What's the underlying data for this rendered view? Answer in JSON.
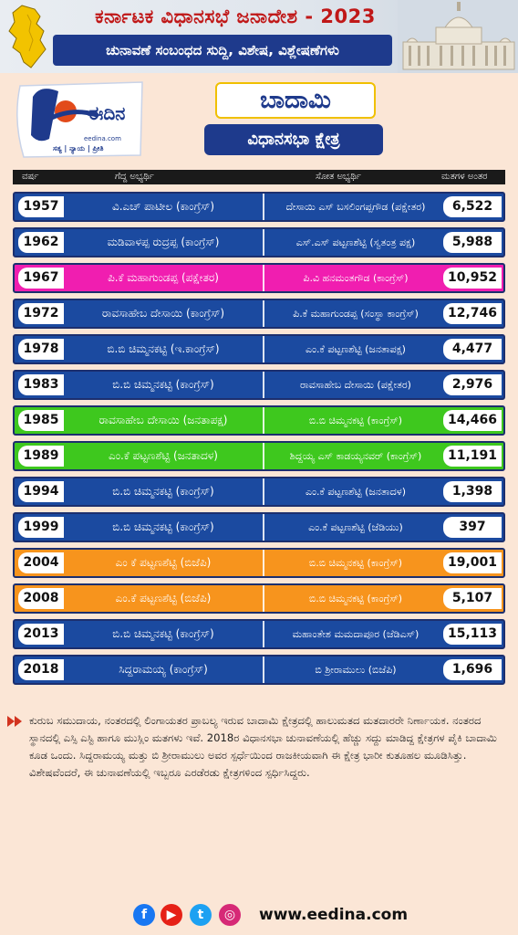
{
  "header": {
    "title": "ಕರ್ನಾಟಕ ವಿಧಾನಸಭೆ ಜನಾದೇಶ - 2023",
    "subtitle": "ಚುನಾವಣೆ ಸಂಬಂಧದ ಸುದ್ದಿ, ವಿಶೇಷ, ವಿಶ್ಲೇಷಣೆಗಳು"
  },
  "logo": {
    "name": "ಈದಿನ",
    "url": "eedina.com",
    "tagline": "ಸತ್ಯ | ನ್ಯಾಯ | ಪ್ರೀತಿ"
  },
  "constituency": {
    "name": "ಬಾದಾಮಿ",
    "type": "ವಿಧಾನಸಭಾ ಕ್ಷೇತ್ರ"
  },
  "table": {
    "headers": {
      "year": "ವರ್ಷ",
      "winner": "ಗೆದ್ದ ಅಭ್ಯರ್ಥಿ",
      "loser": "ಸೋತ ಅಭ್ಯರ್ಥಿ",
      "margin": "ಮತಗಳ ಅಂತರ"
    },
    "rows": [
      {
        "year": "1957",
        "winner": "ವಿ.ಎಚ್ ಪಾಟೀಲ (ಕಾಂಗ್ರೆಸ್)",
        "loser": "ದೇಸಾಯಿ ಎಸ್ ಬಸಲಿಂಗಪ್ಪಗೌಡ (ಪಕ್ಷೇತರ)",
        "margin": "6,522",
        "bg": "#1b4aa0",
        "fg": "#ffffff"
      },
      {
        "year": "1962",
        "winner": "ಮಡಿವಾಳಪ್ಪ ರುದ್ರಪ್ಪ (ಕಾಂಗ್ರೆಸ್)",
        "loser": "ಎಸ್.ಎಸ್ ಪಟ್ಟಣಶೆಟ್ಟಿ (ಸ್ವತಂತ್ರ ಪಕ್ಷ)",
        "margin": "5,988",
        "bg": "#1b4aa0",
        "fg": "#ffffff"
      },
      {
        "year": "1967",
        "winner": "ಪಿ.ಕೆ ಮಹಾಗುಂಡಪ್ಪ (ಪಕ್ಷೇತರ)",
        "loser": "ಪಿ.ವಿ ಹನಮಂತಗೌಡ (ಕಾಂಗ್ರೆಸ್)",
        "margin": "10,952",
        "bg": "#f01eb0",
        "fg": "#ffffff"
      },
      {
        "year": "1972",
        "winner": "ರಾವಸಾಹೇಬ ದೇಸಾಯಿ (ಕಾಂಗ್ರೆಸ್)",
        "loser": "ಪಿ.ಕೆ ಮಹಾಗುಂಡಪ್ಪ (ಸಂಸ್ಥಾ ಕಾಂಗ್ರೆಸ್)",
        "margin": "12,746",
        "bg": "#1b4aa0",
        "fg": "#ffffff"
      },
      {
        "year": "1978",
        "winner": "ಬಿ.ಬಿ ಚಿಮ್ಮನಕಟ್ಟಿ (ಇ.ಕಾಂಗ್ರೆಸ್)",
        "loser": "ಎಂ.ಕೆ ಪಟ್ಟಣಶೆಟ್ಟಿ (ಜನತಾಪಕ್ಷ)",
        "margin": "4,477",
        "bg": "#1b4aa0",
        "fg": "#ffffff"
      },
      {
        "year": "1983",
        "winner": "ಬಿ.ಬಿ ಚಿಮ್ಮನಕಟ್ಟಿ (ಕಾಂಗ್ರೆಸ್)",
        "loser": "ರಾವಸಾಹೇಬ ದೇಸಾಯಿ (ಪಕ್ಷೇತರ)",
        "margin": "2,976",
        "bg": "#1b4aa0",
        "fg": "#ffffff"
      },
      {
        "year": "1985",
        "winner": "ರಾವಸಾಹೇಬ ದೇಸಾಯಿ (ಜನತಾಪಕ್ಷ)",
        "loser": "ಬಿ.ಬಿ ಚಿಮ್ಮನಕಟ್ಟಿ (ಕಾಂಗ್ರೆಸ್)",
        "margin": "14,466",
        "bg": "#3ec81e",
        "fg": "#ffffff"
      },
      {
        "year": "1989",
        "winner": "ಎಂ.ಕೆ ಪಟ್ಟಣಶೆಟ್ಟಿ (ಜನತಾದಳ)",
        "loser": "ಶಿದ್ದಯ್ಯ ಎಸ್ ಕಾಡಯ್ಯನವರ್ (ಕಾಂಗ್ರೆಸ್)",
        "margin": "11,191",
        "bg": "#3ec81e",
        "fg": "#ffffff"
      },
      {
        "year": "1994",
        "winner": "ಬಿ.ಬಿ ಚಿಮ್ಮನಕಟ್ಟಿ (ಕಾಂಗ್ರೆಸ್)",
        "loser": "ಎಂ.ಕೆ ಪಟ್ಟಣಶೆಟ್ಟಿ (ಜನತಾದಳ)",
        "margin": "1,398",
        "bg": "#1b4aa0",
        "fg": "#ffffff"
      },
      {
        "year": "1999",
        "winner": "ಬಿ.ಬಿ ಚಿಮ್ಮನಕಟ್ಟಿ (ಕಾಂಗ್ರೆಸ್)",
        "loser": "ಎಂ.ಕೆ ಪಟ್ಟಣಶೆಟ್ಟಿ (ಜೆಡಿಯು)",
        "margin": "397",
        "bg": "#1b4aa0",
        "fg": "#ffffff"
      },
      {
        "year": "2004",
        "winner": "ಎಂ ಕೆ ಪಟ್ಟಣಶೆಟ್ಟಿ (ಬಿಜೆಪಿ)",
        "loser": "ಬಿ.ಬಿ ಚಿಮ್ಮನಕಟ್ಟಿ (ಕಾಂಗ್ರೆಸ್)",
        "margin": "19,001",
        "bg": "#f7941d",
        "fg": "#ffffff"
      },
      {
        "year": "2008",
        "winner": "ಎಂ.ಕೆ ಪಟ್ಟಣಶೆಟ್ಟಿ (ಬಿಜೆಪಿ)",
        "loser": "ಬಿ.ಬಿ ಚಿಮ್ಮನಕಟ್ಟಿ (ಕಾಂಗ್ರೆಸ್)",
        "margin": "5,107",
        "bg": "#f7941d",
        "fg": "#ffffff"
      },
      {
        "year": "2013",
        "winner": "ಬಿ.ಬಿ ಚಿಮ್ಮನಕಟ್ಟಿ (ಕಾಂಗ್ರೆಸ್)",
        "loser": "ಮಹಾಂತೇಶ ಮಮದಾಪೂರ (ಜೆಡಿಎಸ್)",
        "margin": "15,113",
        "bg": "#1b4aa0",
        "fg": "#ffffff"
      },
      {
        "year": "2018",
        "winner": "ಸಿದ್ದರಾಮಯ್ಯ (ಕಾಂಗ್ರೆಸ್)",
        "loser": "ಬಿ ಶ್ರೀರಾಮುಲು (ಬಿಜೆಪಿ)",
        "margin": "1,696",
        "bg": "#1b4aa0",
        "fg": "#ffffff"
      }
    ]
  },
  "note": "ಕುರುಬ ಸಮುದಾಯ, ನಂತರದಲ್ಲಿ ಲಿಂಗಾಯತರ ಪ್ರಾಬಲ್ಯ ಇರುವ ಬಾದಾಮಿ ಕ್ಷೇತ್ರದಲ್ಲಿ ಹಾಲುಮತದ ಮತದಾರರೇ ನಿರ್ಣಾಯಕ. ನಂತರದ ಸ್ಥಾನದಲ್ಲಿ ಎಸ್ಸಿ ಎಸ್ಟಿ ಹಾಗೂ ಮುಸ್ಲಿಂ ಮತಗಳು ಇವೆ. 2018ರ ವಿಧಾನಸಭಾ ಚುನಾವಣೆಯಲ್ಲಿ ಹೆಚ್ಚು ಸದ್ದು ಮಾಡಿದ್ದ ಕ್ಷೇತ್ರಗಳ ಪೈಕಿ ಬಾದಾಮಿ ಕೂಡ ಒಂದು. ಸಿದ್ದರಾಮಯ್ಯ ಮತ್ತು ಬಿ ಶ್ರೀರಾಮುಲು ಅವರ ಸ್ಪರ್ಧೆಯಿಂದ ರಾಜಕೀಯವಾಗಿ ಈ ಕ್ಷೇತ್ರ ಭಾರೀ ಕುತೂಹಲ ಮೂಡಿಸಿತ್ತು. ವಿಶೇಷವೆಂದರೆ, ಈ ಚುನಾವಣೆಯಲ್ಲಿ ಇಬ್ಬರೂ ಎರಡೆರಡು ಕ್ಷೇತ್ರಗಳಿಂದ ಸ್ಪರ್ಧಿಸಿದ್ದರು.",
  "footer": {
    "icons": [
      {
        "name": "facebook-icon",
        "glyph": "f",
        "color": "#1877f2"
      },
      {
        "name": "youtube-icon",
        "glyph": "▶",
        "color": "#e62117"
      },
      {
        "name": "twitter-icon",
        "glyph": "t",
        "color": "#1da1f2"
      },
      {
        "name": "instagram-icon",
        "glyph": "◎",
        "color": "#d62976"
      }
    ],
    "url": "www.eedina.com"
  }
}
